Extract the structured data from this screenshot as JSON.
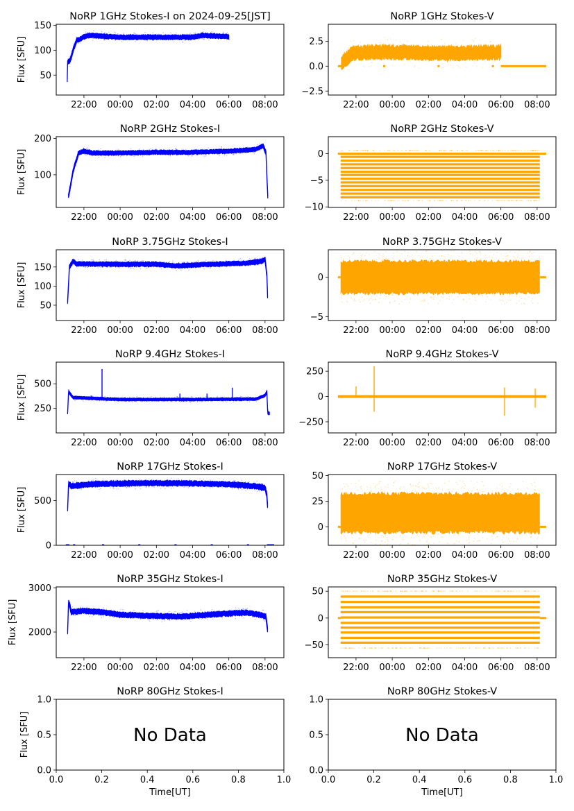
{
  "figure": {
    "date_label": "2024-09-25[JST]",
    "xlabel": "Time[UT]",
    "ylabel": "Flux [SFU]",
    "no_data_text": "No Data",
    "colors": {
      "stokes_i": "#0000ff",
      "stokes_v": "#ffa500",
      "axis": "#000000"
    }
  },
  "chart_data": [
    {
      "id": "1GHz-I",
      "type": "scatter",
      "title": "NoRP 1GHz Stokes-I on 2024-09-25[JST]",
      "ylabel": "Flux [SFU]",
      "color": "#0000ff",
      "yticks": [
        50,
        100,
        150
      ],
      "ylim": [
        10,
        152
      ],
      "xticks": [
        "22:00",
        "00:00",
        "02:00",
        "04:00",
        "06:00",
        "08:00"
      ],
      "xlim_hours": [
        -3.53,
        9.04
      ],
      "data_range_hours": [
        -2.92,
        6.0
      ],
      "profile": [
        [
          -2.92,
          40
        ],
        [
          -2.9,
          75
        ],
        [
          -2.75,
          80
        ],
        [
          -2.6,
          100
        ],
        [
          -2.4,
          120
        ],
        [
          -2.2,
          122
        ],
        [
          -2.0,
          127
        ],
        [
          -1.7,
          130
        ],
        [
          -1.0,
          128
        ],
        [
          0,
          126
        ],
        [
          2,
          126
        ],
        [
          4,
          126
        ],
        [
          4.5,
          130
        ],
        [
          5,
          129
        ],
        [
          6,
          127
        ]
      ],
      "spread": 4
    },
    {
      "id": "1GHz-V",
      "type": "scatter",
      "title": "NoRP 1GHz Stokes-V",
      "color": "#ffa500",
      "yticks": [
        -2.5,
        0.0,
        2.5
      ],
      "ylim": [
        -2.9,
        4.2
      ],
      "xticks": [
        "22:00",
        "00:00",
        "02:00",
        "04:00",
        "06:00",
        "08:00"
      ],
      "xlim_hours": [
        -3.53,
        9.04
      ],
      "data_range_hours": [
        -2.8,
        6.0
      ],
      "profile": [
        [
          -2.8,
          0.3
        ],
        [
          -2.5,
          0.8
        ],
        [
          -2.2,
          1.3
        ],
        [
          -1.5,
          1.4
        ],
        [
          0,
          1.4
        ],
        [
          2,
          1.3
        ],
        [
          4,
          1.3
        ],
        [
          6,
          1.4
        ]
      ],
      "spread": 0.6,
      "zero_segments": [
        [
          -3.0,
          -2.75
        ],
        [
          -0.5,
          -0.4
        ],
        [
          2.5,
          2.6
        ],
        [
          5.5,
          5.6
        ],
        [
          6.0,
          8.5
        ]
      ]
    },
    {
      "id": "2GHz-I",
      "type": "scatter",
      "title": "NoRP 2GHz Stokes-I",
      "ylabel": "Flux [SFU]",
      "color": "#0000ff",
      "yticks": [
        100,
        200
      ],
      "ylim": [
        10,
        205
      ],
      "xticks": [
        "22:00",
        "00:00",
        "02:00",
        "04:00",
        "06:00",
        "08:00"
      ],
      "xlim_hours": [
        -3.53,
        9.04
      ],
      "data_range_hours": [
        -2.85,
        8.15
      ],
      "profile": [
        [
          -2.85,
          40
        ],
        [
          -2.6,
          110
        ],
        [
          -2.3,
          160
        ],
        [
          -2.0,
          165
        ],
        [
          -1.5,
          160
        ],
        [
          0,
          160
        ],
        [
          2,
          162
        ],
        [
          4,
          162
        ],
        [
          6,
          165
        ],
        [
          7.5,
          170
        ],
        [
          7.9,
          180
        ],
        [
          8.05,
          160
        ],
        [
          8.15,
          40
        ]
      ],
      "spread": 5
    },
    {
      "id": "2GHz-V",
      "type": "scatter",
      "title": "NoRP 2GHz Stokes-V",
      "color": "#ffa500",
      "yticks": [
        -10,
        -5,
        0
      ],
      "ylim": [
        -10.1,
        3.2
      ],
      "xticks": [
        "22:00",
        "00:00",
        "02:00",
        "04:00",
        "06:00",
        "08:00"
      ],
      "xlim_hours": [
        -3.53,
        9.04
      ],
      "data_range_hours": [
        -2.85,
        8.15
      ],
      "quantized_levels": [
        0,
        -0.6,
        -1.3,
        -2.0,
        -2.7,
        -3.4,
        -4.0,
        -4.7,
        -5.4,
        -6.1,
        -6.8,
        -7.5,
        -8.2
      ],
      "zero_segments": [
        [
          -3.0,
          -2.85
        ],
        [
          8.15,
          8.5
        ]
      ]
    },
    {
      "id": "3.75GHz-I",
      "type": "scatter",
      "title": "NoRP 3.75GHz Stokes-I",
      "ylabel": "Flux [SFU]",
      "color": "#0000ff",
      "yticks": [
        50,
        100,
        150
      ],
      "ylim": [
        10,
        195
      ],
      "xticks": [
        "22:00",
        "00:00",
        "02:00",
        "04:00",
        "06:00",
        "08:00"
      ],
      "xlim_hours": [
        -3.53,
        9.04
      ],
      "data_range_hours": [
        -2.9,
        8.15
      ],
      "profile": [
        [
          -2.9,
          60
        ],
        [
          -2.8,
          150
        ],
        [
          -2.6,
          165
        ],
        [
          -2.4,
          158
        ],
        [
          0,
          157
        ],
        [
          2,
          157
        ],
        [
          3,
          153
        ],
        [
          5,
          157
        ],
        [
          7,
          160
        ],
        [
          7.8,
          165
        ],
        [
          8.0,
          170
        ],
        [
          8.1,
          130
        ],
        [
          8.15,
          60
        ]
      ],
      "spread": 5
    },
    {
      "id": "3.75GHz-V",
      "type": "scatter",
      "title": "NoRP 3.75GHz Stokes-V",
      "color": "#ffa500",
      "yticks": [
        -5,
        0
      ],
      "ylim": [
        -5.5,
        3.5
      ],
      "xticks": [
        "22:00",
        "00:00",
        "02:00",
        "04:00",
        "06:00",
        "08:00"
      ],
      "xlim_hours": [
        -3.53,
        9.04
      ],
      "data_range_hours": [
        -2.85,
        8.15
      ],
      "band": [
        -2.0,
        2.0
      ],
      "zero_segments": [
        [
          -3.0,
          -2.85
        ],
        [
          8.15,
          8.5
        ]
      ]
    },
    {
      "id": "9.4GHz-I",
      "type": "scatter",
      "title": "NoRP 9.4GHz Stokes-I",
      "ylabel": "Flux [SFU]",
      "color": "#0000ff",
      "yticks": [
        250,
        500
      ],
      "ylim": [
        0,
        720
      ],
      "xticks": [
        "22:00",
        "00:00",
        "02:00",
        "04:00",
        "06:00",
        "08:00"
      ],
      "xlim_hours": [
        -3.53,
        9.04
      ],
      "data_range_hours": [
        -2.9,
        8.25
      ],
      "profile": [
        [
          -2.9,
          200
        ],
        [
          -2.85,
          420
        ],
        [
          -2.6,
          360
        ],
        [
          0,
          340
        ],
        [
          4,
          340
        ],
        [
          7.5,
          345
        ],
        [
          8.0,
          380
        ],
        [
          8.1,
          420
        ],
        [
          8.15,
          200
        ],
        [
          8.25,
          200
        ]
      ],
      "spread": 12,
      "spikes": [
        [
          -1.0,
          650
        ],
        [
          3.3,
          400
        ],
        [
          6.2,
          460
        ],
        [
          -1.6,
          380
        ],
        [
          4.8,
          400
        ]
      ]
    },
    {
      "id": "9.4GHz-V",
      "type": "scatter",
      "title": "NoRP 9.4GHz Stokes-V",
      "color": "#ffa500",
      "yticks": [
        -250,
        0,
        250
      ],
      "ylim": [
        -360,
        340
      ],
      "xticks": [
        "22:00",
        "00:00",
        "02:00",
        "04:00",
        "06:00",
        "08:00"
      ],
      "xlim_hours": [
        -3.53,
        9.04
      ],
      "data_range_hours": [
        -3.0,
        8.5
      ],
      "spikes": [
        [
          -1.0,
          300
        ],
        [
          -1.0,
          -150
        ],
        [
          6.2,
          90
        ],
        [
          6.2,
          -190
        ],
        [
          7.9,
          80
        ],
        [
          7.9,
          -110
        ],
        [
          -2.0,
          100
        ]
      ]
    },
    {
      "id": "17GHz-I",
      "type": "scatter",
      "title": "NoRP 17GHz Stokes-I",
      "ylabel": "Flux [SFU]",
      "color": "#0000ff",
      "yticks": [
        0,
        500
      ],
      "ylim": [
        0,
        790
      ],
      "xticks": [
        "22:00",
        "00:00",
        "02:00",
        "04:00",
        "06:00",
        "08:00"
      ],
      "xlim_hours": [
        -3.53,
        9.04
      ],
      "data_range_hours": [
        -2.9,
        8.15
      ],
      "profile": [
        [
          -2.9,
          410
        ],
        [
          -2.85,
          690
        ],
        [
          -2.7,
          660
        ],
        [
          -1.5,
          685
        ],
        [
          0,
          690
        ],
        [
          2,
          695
        ],
        [
          4,
          690
        ],
        [
          6,
          680
        ],
        [
          7.5,
          660
        ],
        [
          8.0,
          640
        ],
        [
          8.1,
          560
        ],
        [
          8.15,
          410
        ]
      ],
      "spread": 25,
      "zero_segments": [
        [
          -3.0,
          -2.8
        ],
        [
          -2.6,
          -2.5
        ],
        [
          -1.0,
          -0.9
        ],
        [
          1.0,
          1.1
        ],
        [
          3.0,
          3.1
        ],
        [
          5.0,
          5.1
        ],
        [
          7.0,
          7.1
        ],
        [
          8.1,
          8.5
        ]
      ]
    },
    {
      "id": "17GHz-V",
      "type": "scatter",
      "title": "NoRP 17GHz Stokes-V",
      "color": "#ffa500",
      "yticks": [
        0,
        25,
        50
      ],
      "ylim": [
        -18,
        51
      ],
      "xticks": [
        "22:00",
        "00:00",
        "02:00",
        "04:00",
        "06:00",
        "08:00"
      ],
      "xlim_hours": [
        -3.53,
        9.04
      ],
      "data_range_hours": [
        -2.85,
        8.15
      ],
      "band": [
        -5,
        32
      ],
      "zero_segments": [
        [
          -3.0,
          -2.85
        ],
        [
          8.15,
          8.5
        ]
      ]
    },
    {
      "id": "35GHz-I",
      "type": "scatter",
      "title": "NoRP 35GHz Stokes-I",
      "ylabel": "Flux [SFU]",
      "color": "#0000ff",
      "yticks": [
        2000,
        3000
      ],
      "ylim": [
        1420,
        3020
      ],
      "xticks": [
        "22:00",
        "00:00",
        "02:00",
        "04:00",
        "06:00",
        "08:00"
      ],
      "xlim_hours": [
        -3.53,
        9.04
      ],
      "data_range_hours": [
        -2.9,
        8.15
      ],
      "profile": [
        [
          -2.9,
          2000
        ],
        [
          -2.85,
          2700
        ],
        [
          -2.7,
          2450
        ],
        [
          -2.0,
          2480
        ],
        [
          -1.0,
          2450
        ],
        [
          0,
          2390
        ],
        [
          2,
          2360
        ],
        [
          3.5,
          2350
        ],
        [
          4,
          2370
        ],
        [
          6,
          2420
        ],
        [
          7,
          2440
        ],
        [
          7.8,
          2380
        ],
        [
          8.05,
          2350
        ],
        [
          8.15,
          2000
        ]
      ],
      "spread": 50
    },
    {
      "id": "35GHz-V",
      "type": "scatter",
      "title": "NoRP 35GHz Stokes-V",
      "color": "#ffa500",
      "yticks": [
        -50,
        0,
        50
      ],
      "ylim": [
        -74,
        58
      ],
      "xticks": [
        "22:00",
        "00:00",
        "02:00",
        "04:00",
        "06:00",
        "08:00"
      ],
      "xlim_hours": [
        -3.53,
        9.04
      ],
      "data_range_hours": [
        -2.85,
        8.15
      ],
      "quantized_levels": [
        40,
        30,
        20,
        11,
        1,
        -9,
        -18,
        -27,
        -37,
        -46
      ],
      "zero_segments": [
        [
          -3.0,
          -2.85
        ],
        [
          8.15,
          8.5
        ]
      ]
    },
    {
      "id": "80GHz-I",
      "type": "empty",
      "title": "NoRP 80GHz Stokes-I",
      "ylabel": "Flux [SFU]",
      "xlabel": "Time[UT]",
      "yticks": [
        "0.0",
        "0.5",
        "1.0"
      ],
      "xticks": [
        "0.0",
        "0.2",
        "0.4",
        "0.6",
        "0.8",
        "1.0"
      ],
      "ylim": [
        0,
        1
      ],
      "xlim": [
        0,
        1
      ],
      "annotation": "No Data"
    },
    {
      "id": "80GHz-V",
      "type": "empty",
      "title": "NoRP 80GHz Stokes-V",
      "xlabel": "Time[UT]",
      "yticks": [
        "0.0",
        "0.5",
        "1.0"
      ],
      "xticks": [
        "0.0",
        "0.2",
        "0.4",
        "0.6",
        "0.8",
        "1.0"
      ],
      "ylim": [
        0,
        1
      ],
      "xlim": [
        0,
        1
      ],
      "annotation": "No Data"
    }
  ]
}
